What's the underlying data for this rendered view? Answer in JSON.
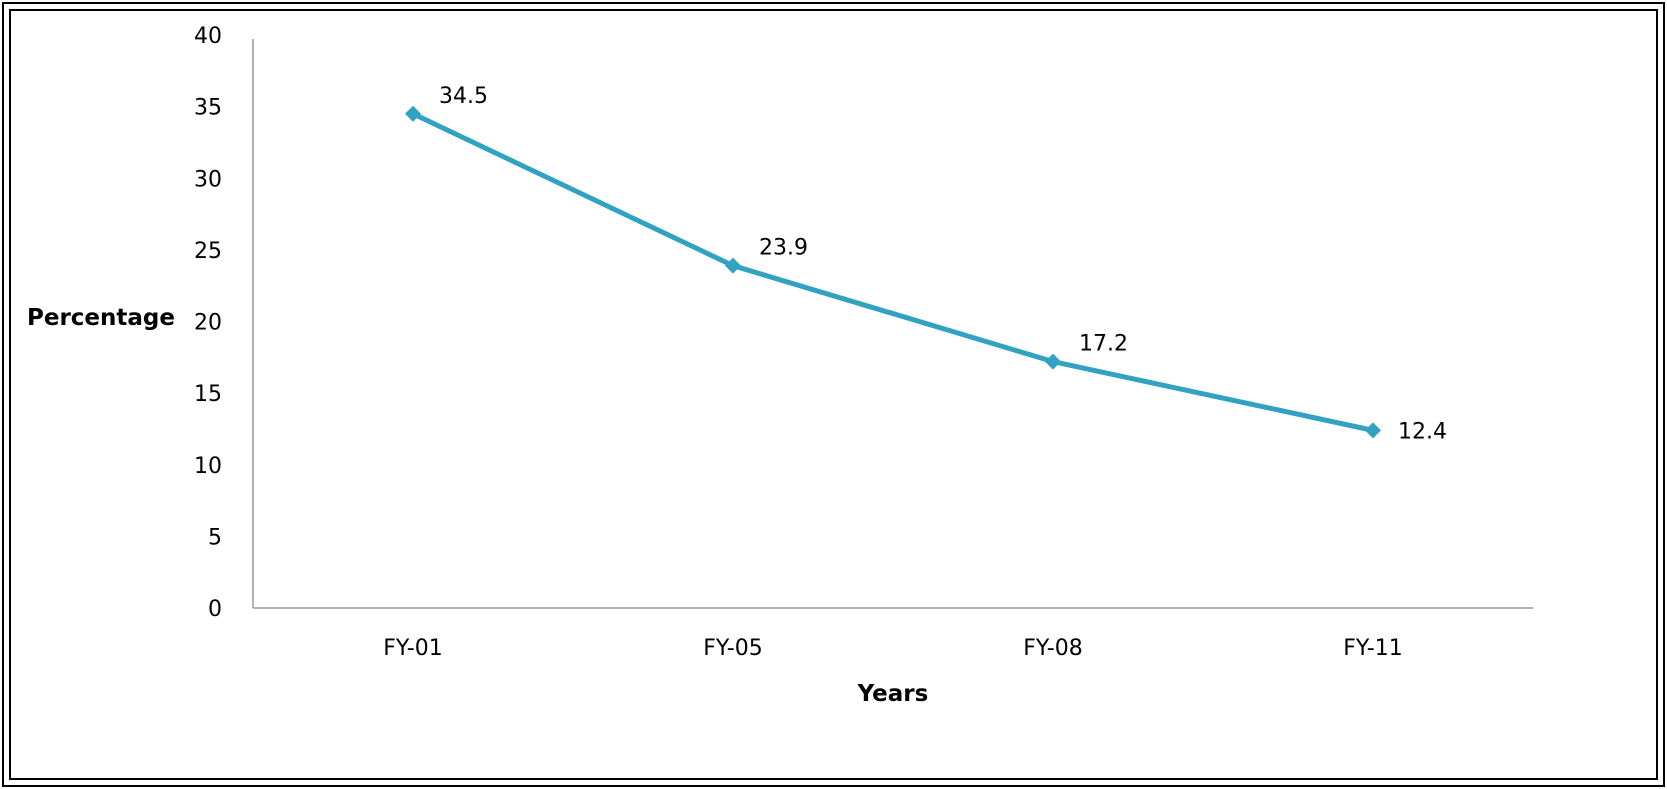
{
  "chart_data": {
    "type": "line",
    "categories": [
      "FY-01",
      "FY-05",
      "FY-08",
      "FY-11"
    ],
    "series": [
      {
        "values": [
          34.5,
          23.9,
          17.2,
          12.4
        ]
      }
    ],
    "data_labels": [
      "34.5",
      "23.9",
      "17.2",
      "12.4"
    ],
    "xlabel": "Years",
    "ylabel": "Percentage",
    "ylim": [
      0,
      40
    ],
    "yticks": [
      0,
      5,
      10,
      15,
      20,
      25,
      30,
      35,
      40
    ],
    "grid": false,
    "legend": "none",
    "line_color": "#31A2C2",
    "marker": "diamond"
  }
}
